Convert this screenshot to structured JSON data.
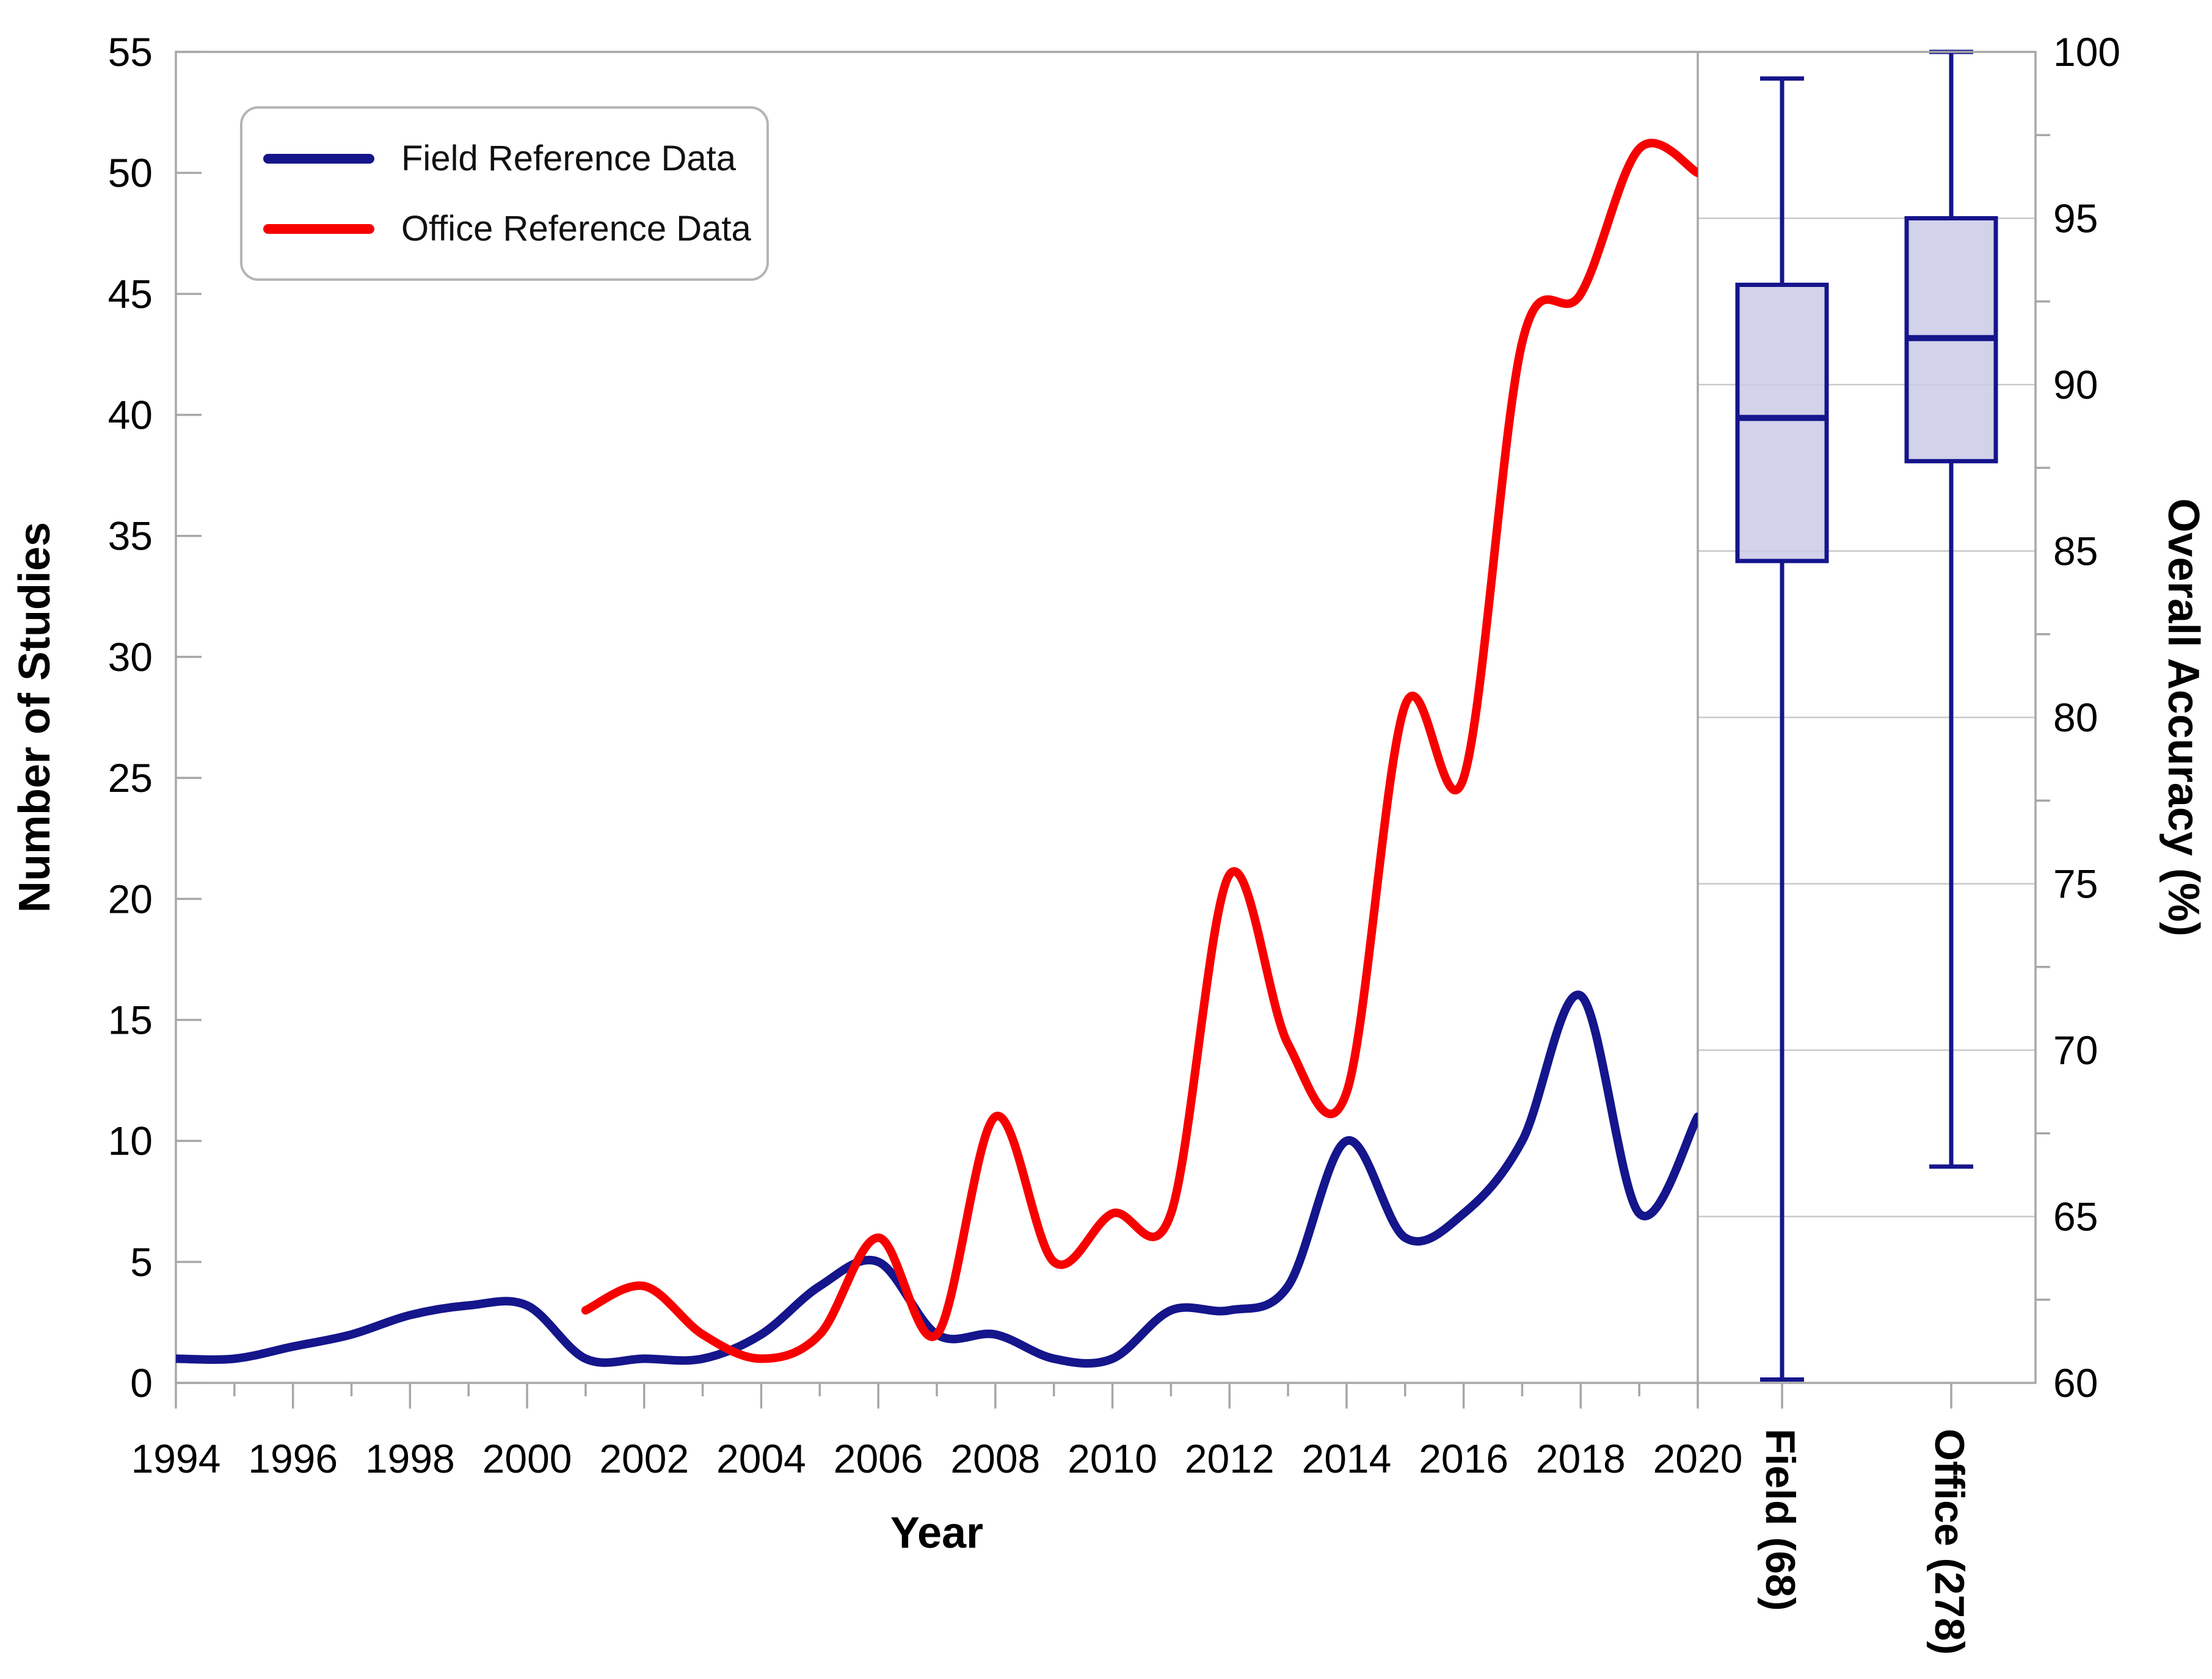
{
  "figure": {
    "legend": {
      "items": [
        {
          "label": "Field Reference Data",
          "color": "#15158C"
        },
        {
          "label": "Office Reference Data",
          "color": "#F70000"
        }
      ]
    },
    "axes": {
      "left": {
        "title": "Number of Studies",
        "tick_labels": [
          0,
          5,
          10,
          15,
          20,
          25,
          30,
          35,
          40,
          45,
          50,
          55
        ],
        "range": [
          0,
          55
        ]
      },
      "bottom": {
        "title": "Year",
        "tick_labels": [
          1994,
          1996,
          1998,
          2000,
          2002,
          2004,
          2006,
          2008,
          2010,
          2012,
          2014,
          2016,
          2018,
          2020
        ],
        "minor_ticks_every_year": true,
        "range": [
          1994,
          2020
        ]
      },
      "right": {
        "title": "Overall Accuracy (%)",
        "tick_labels": [
          100,
          95,
          90,
          85,
          80,
          75,
          70,
          65,
          60
        ],
        "minor_ticks": [
          97.5,
          92.5,
          87.5,
          82.5,
          77.5,
          72.5,
          67.5,
          62.5
        ],
        "range": [
          60,
          100
        ]
      }
    },
    "categories": [
      {
        "label": "Field (68)"
      },
      {
        "label": "Office (278)"
      }
    ],
    "colors": {
      "field_line": "#15158C",
      "office_line": "#F70000",
      "box_fill": "#CACAE8",
      "box_stroke": "#15158C",
      "gridline": "#C9C9C9",
      "axis": "#A7A7A7",
      "text": "#000000"
    }
  },
  "chart_data": [
    {
      "type": "line",
      "title": "",
      "xlabel": "Year",
      "ylabel": "Number of Studies",
      "xlim": [
        1994,
        2020
      ],
      "ylim": [
        0,
        55
      ],
      "grid": false,
      "legend_position": "top-left",
      "series": [
        {
          "name": "Field Reference Data",
          "color": "#15158C",
          "x": [
            1994,
            1995,
            1996,
            1997,
            1998,
            1999,
            2000,
            2001,
            2002,
            2003,
            2004,
            2005,
            2006,
            2007,
            2008,
            2009,
            2010,
            2011,
            2012,
            2013,
            2014,
            2015,
            2016,
            2017,
            2018,
            2019,
            2020
          ],
          "values": [
            1,
            1,
            1.5,
            2,
            2.8,
            3.2,
            3.2,
            1,
            1,
            1,
            2,
            4,
            5,
            2,
            2,
            1,
            1,
            3,
            3,
            4,
            10,
            6,
            7,
            10,
            16,
            7,
            11
          ]
        },
        {
          "name": "Office Reference Data",
          "color": "#F70000",
          "x": [
            2001,
            2002,
            2003,
            2004,
            2005,
            2006,
            2007,
            2008,
            2009,
            2010,
            2011,
            2012,
            2013,
            2014,
            2015,
            2016,
            2017,
            2018,
            2019,
            2020
          ],
          "values": [
            3,
            4,
            2,
            1,
            2,
            6,
            2,
            11,
            5,
            7,
            7,
            21,
            14,
            12,
            28,
            25,
            43,
            45,
            51,
            50
          ]
        }
      ]
    },
    {
      "type": "boxplot",
      "ylabel": "Overall Accuracy (%)",
      "ylim": [
        60,
        100
      ],
      "grid": true,
      "gridline_values": [
        95,
        90,
        85,
        80,
        75,
        70,
        65
      ],
      "boxes": [
        {
          "label": "Field (68)",
          "n": 68,
          "min": 60.1,
          "q1": 84.7,
          "median": 89.0,
          "q3": 93.0,
          "max": 99.2
        },
        {
          "label": "Office (278)",
          "n": 278,
          "min": 66.5,
          "q1": 87.7,
          "median": 91.4,
          "q3": 95.0,
          "max": 100.0
        }
      ]
    }
  ]
}
